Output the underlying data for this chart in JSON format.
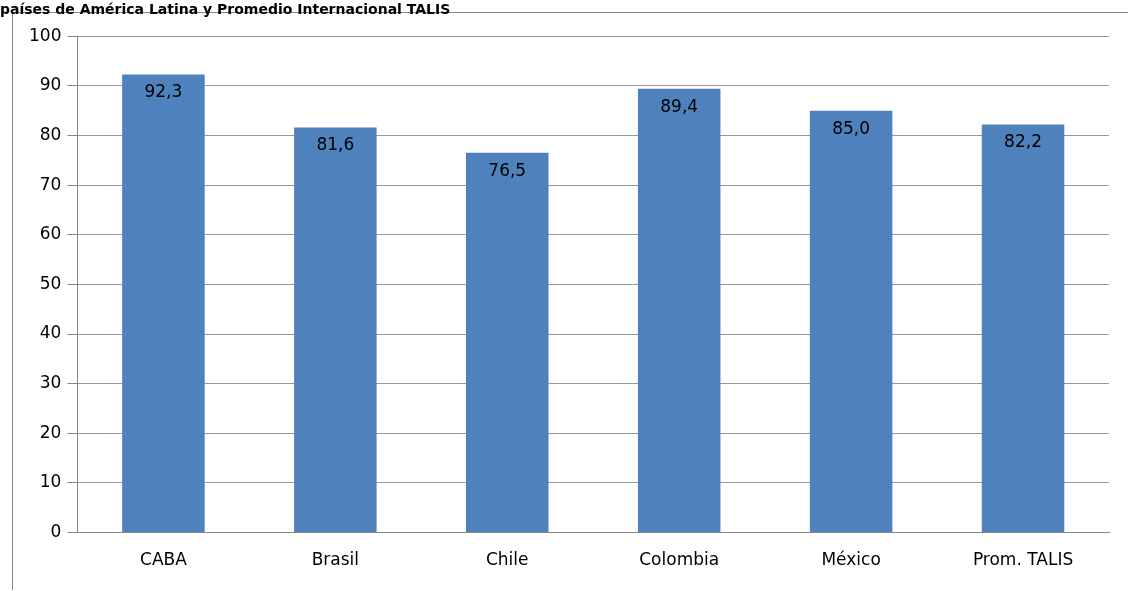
{
  "chart_data": {
    "type": "bar",
    "title": "países de América Latina y Promedio Internacional TALIS",
    "categories": [
      "CABA",
      "Brasil",
      "Chile",
      "Colombia",
      "México",
      "Prom. TALIS"
    ],
    "values": [
      92.3,
      81.6,
      76.5,
      89.4,
      85.0,
      82.2
    ],
    "value_labels": [
      "92,3",
      "81,6",
      "76,5",
      "89,4",
      "85,0",
      "82,2"
    ],
    "color": "#4f81bd",
    "ylim": [
      0,
      100
    ],
    "yticks": [
      0,
      10,
      20,
      30,
      40,
      50,
      60,
      70,
      80,
      90,
      100
    ],
    "grid": "y",
    "legend": false
  }
}
